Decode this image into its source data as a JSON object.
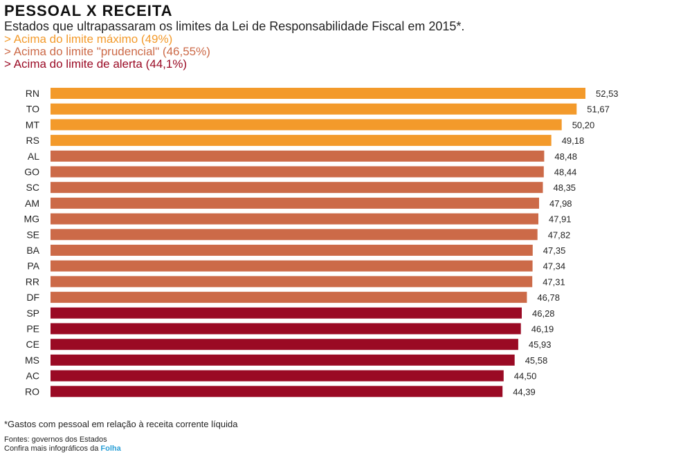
{
  "header": {
    "title": "PESSOAL X RECEITA",
    "subtitle": "Estados que ultrapassaram os limites da Lei de Responsabilidade Fiscal em 2015*."
  },
  "legend": [
    {
      "text": "> Acima do limite máximo (49%)",
      "color": "#f39a2b"
    },
    {
      "text": "> Acima do limite \"prudencial\" (46,55%)",
      "color": "#cc6a48"
    },
    {
      "text": "> Acima do limite de alerta (44,1%)",
      "color": "#9a0a24"
    }
  ],
  "colors": {
    "maximo": "#f39a2b",
    "prudencial": "#cc6a48",
    "alerta": "#9a0a24"
  },
  "chart_data": {
    "type": "bar",
    "orientation": "horizontal",
    "title": "PESSOAL X RECEITA",
    "xlim": [
      0,
      52.53
    ],
    "grid": false,
    "categories": [
      "RN",
      "TO",
      "MT",
      "RS",
      "AL",
      "GO",
      "SC",
      "AM",
      "MG",
      "SE",
      "BA",
      "PA",
      "RR",
      "DF",
      "SP",
      "PE",
      "CE",
      "MS",
      "AC",
      "RO"
    ],
    "values": [
      52.53,
      51.67,
      50.2,
      49.18,
      48.48,
      48.44,
      48.35,
      47.98,
      47.91,
      47.82,
      47.35,
      47.34,
      47.31,
      46.78,
      46.28,
      46.19,
      45.93,
      45.58,
      44.5,
      44.39
    ],
    "value_labels": [
      "52,53",
      "51,67",
      "50,20",
      "49,18",
      "48,48",
      "48,44",
      "48,35",
      "47,98",
      "47,91",
      "47,82",
      "47,35",
      "47,34",
      "47,31",
      "46,78",
      "46,28",
      "46,19",
      "45,93",
      "45,58",
      "44,50",
      "44,39"
    ],
    "groups": [
      "maximo",
      "maximo",
      "maximo",
      "maximo",
      "prudencial",
      "prudencial",
      "prudencial",
      "prudencial",
      "prudencial",
      "prudencial",
      "prudencial",
      "prudencial",
      "prudencial",
      "prudencial",
      "alerta",
      "alerta",
      "alerta",
      "alerta",
      "alerta",
      "alerta"
    ]
  },
  "footer": {
    "footnote": "*Gastos com pessoal em relação à receita corrente líquida",
    "source": "Fontes: governos dos Estados",
    "more_prefix": "Confira mais infográficos da ",
    "brand": "Folha"
  }
}
